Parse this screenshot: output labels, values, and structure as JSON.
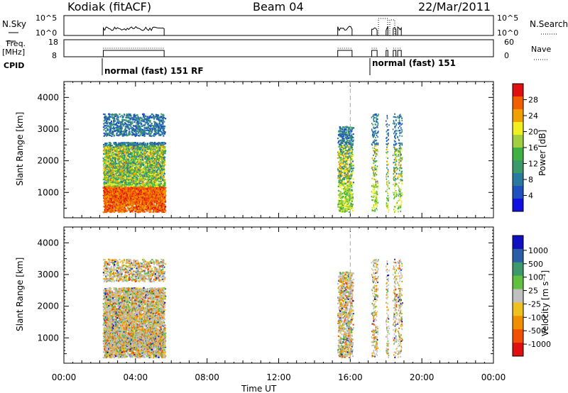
{
  "header": {
    "station": "Kodiak (fitACF)",
    "beam": "Beam 04",
    "date": "22/Mar/2011"
  },
  "top_panels": {
    "nsky_label": "N.Sky",
    "nsky_ticks": [
      "10^5",
      "10^0"
    ],
    "nsearch_label": "N.Search",
    "nsearch_ticks": [
      "10^5",
      "10^0"
    ],
    "freq_label": "Freq.",
    "freq_unit": "[MHz]",
    "freq_ticks": [
      "18",
      "8"
    ],
    "nave_label": "Nave",
    "nave_ticks": [
      "60",
      "0"
    ],
    "cpid_label": "CPID",
    "cpid_segments": [
      {
        "label": "normal (fast) 151 RF",
        "start_hour": 2.2
      },
      {
        "label": "normal (fast) 151",
        "start_hour": 17.2
      }
    ]
  },
  "chart_data": [
    {
      "type": "heatmap",
      "title": "",
      "xlabel": "Time UT",
      "ylabel": "Slant Range [km]",
      "xlim": [
        0,
        24
      ],
      "ylim": [
        200,
        4500
      ],
      "x_ticks": [
        "00:00",
        "04:00",
        "08:00",
        "12:00",
        "16:00",
        "20:00",
        "00:00"
      ],
      "y_ticks": [
        1000,
        2000,
        3000,
        4000
      ],
      "colorbar_label": "Power [dB]",
      "colorbar_ticks": [
        "4",
        "8",
        "12",
        "16",
        "20",
        "24",
        "28"
      ],
      "colorbar_range": [
        0,
        32
      ],
      "marker_hour": 16,
      "data_windows": [
        {
          "start": 2.2,
          "end": 5.6
        },
        {
          "start": 15.3,
          "end": 16.1
        },
        {
          "start": 17.2,
          "end": 17.5
        },
        {
          "start": 18.0,
          "end": 18.1
        },
        {
          "start": 18.4,
          "end": 18.55
        },
        {
          "start": 18.65,
          "end": 18.85
        }
      ],
      "colors": [
        "#1010e0",
        "#2050c0",
        "#2a7aa0",
        "#3c9a6a",
        "#40b040",
        "#a0d040",
        "#f0f020",
        "#f0a000",
        "#f06000",
        "#e01010"
      ]
    },
    {
      "type": "heatmap",
      "title": "",
      "xlabel": "Time UT",
      "ylabel": "Slant Range [km]",
      "xlim": [
        0,
        24
      ],
      "ylim": [
        200,
        4500
      ],
      "x_ticks": [
        "00:00",
        "04:00",
        "08:00",
        "12:00",
        "16:00",
        "20:00",
        "00:00"
      ],
      "y_ticks": [
        1000,
        2000,
        3000,
        4000
      ],
      "colorbar_label": "Velocity [m s⁻¹]",
      "colorbar_ticks": [
        "1000",
        "500",
        "100",
        "25",
        "-25",
        "-100",
        "-500",
        "-1000"
      ],
      "marker_hour": 16,
      "colors": [
        "#1010c0",
        "#2a5fa8",
        "#3c9a6a",
        "#60c040",
        "#c0c0c0",
        "#f0c020",
        "#f09000",
        "#f05000",
        "#e01010"
      ]
    }
  ]
}
